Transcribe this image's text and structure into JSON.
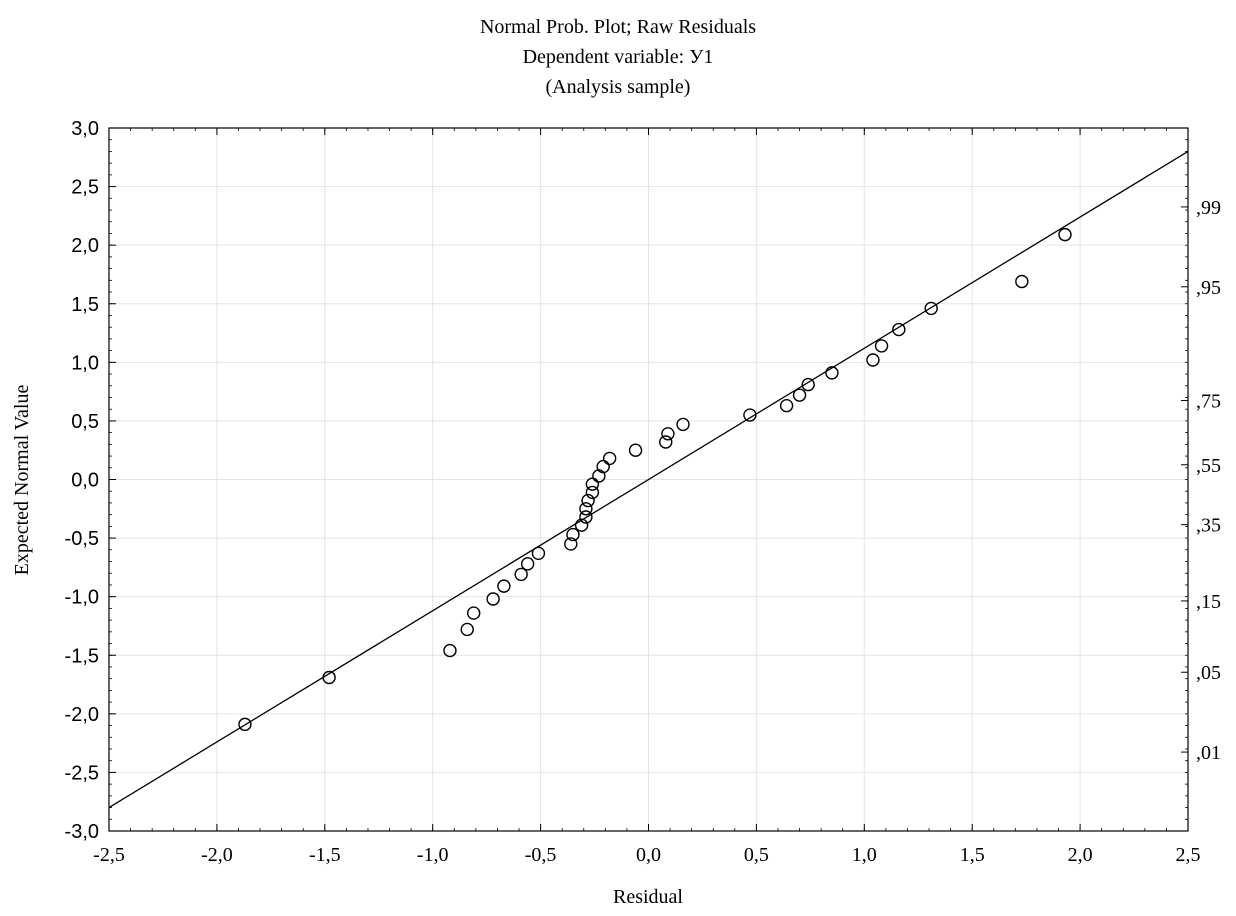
{
  "chart_data": {
    "type": "scatter",
    "title": [
      "Normal Prob. Plot; Raw Residuals",
      "Dependent variable: У1",
      "(Analysis sample)"
    ],
    "xlabel": "Residual",
    "ylabel": "Expected Normal Value",
    "xlim": [
      -2.5,
      2.5
    ],
    "ylim": [
      -3.0,
      3.0
    ],
    "x_ticks": [
      -2.5,
      -2.0,
      -1.5,
      -1.0,
      -0.5,
      0.0,
      0.5,
      1.0,
      1.5,
      2.0,
      2.5
    ],
    "x_tick_labels": [
      "-2,5",
      "-2,0",
      "-1,5",
      "-1,0",
      "-0,5",
      "0,0",
      "0,5",
      "1,0",
      "1,5",
      "2,0",
      "2,5"
    ],
    "y_ticks": [
      -3.0,
      -2.5,
      -2.0,
      -1.5,
      -1.0,
      -0.5,
      0.0,
      0.5,
      1.0,
      1.5,
      2.0,
      2.5,
      3.0
    ],
    "y_tick_labels": [
      "-3,0",
      "-2,5",
      "-2,0",
      "-1,5",
      "-1,0",
      "-0,5",
      "0,0",
      "0,5",
      "1,0",
      "1,5",
      "2,0",
      "2,5",
      "3,0"
    ],
    "right_axis": {
      "labels": [
        ",01",
        ",05",
        ",15",
        ",35",
        ",55",
        ",75",
        ",95",
        ",99"
      ],
      "probabilities": [
        0.01,
        0.05,
        0.15,
        0.35,
        0.55,
        0.75,
        0.95,
        0.99
      ]
    },
    "grid": true,
    "fit_line": {
      "x": [
        -2.5,
        2.5
      ],
      "y": [
        -2.8,
        2.8
      ]
    },
    "series": [
      {
        "marker": "open-circle",
        "points": [
          [
            -1.87,
            -2.09
          ],
          [
            -1.48,
            -1.69
          ],
          [
            -0.92,
            -1.46
          ],
          [
            -0.84,
            -1.28
          ],
          [
            -0.81,
            -1.14
          ],
          [
            -0.72,
            -1.02
          ],
          [
            -0.67,
            -0.91
          ],
          [
            -0.59,
            -0.81
          ],
          [
            -0.56,
            -0.72
          ],
          [
            -0.51,
            -0.63
          ],
          [
            -0.36,
            -0.55
          ],
          [
            -0.35,
            -0.47
          ],
          [
            -0.31,
            -0.39
          ],
          [
            -0.29,
            -0.32
          ],
          [
            -0.29,
            -0.25
          ],
          [
            -0.28,
            -0.18
          ],
          [
            -0.26,
            -0.11
          ],
          [
            -0.26,
            -0.04
          ],
          [
            -0.23,
            0.03
          ],
          [
            -0.21,
            0.11
          ],
          [
            -0.18,
            0.18
          ],
          [
            -0.06,
            0.25
          ],
          [
            0.08,
            0.32
          ],
          [
            0.09,
            0.39
          ],
          [
            0.16,
            0.47
          ],
          [
            0.47,
            0.55
          ],
          [
            0.64,
            0.63
          ],
          [
            0.7,
            0.72
          ],
          [
            0.74,
            0.81
          ],
          [
            0.85,
            0.91
          ],
          [
            1.04,
            1.02
          ],
          [
            1.08,
            1.14
          ],
          [
            1.16,
            1.28
          ],
          [
            1.31,
            1.46
          ],
          [
            1.73,
            1.69
          ],
          [
            1.93,
            2.09
          ]
        ]
      }
    ]
  }
}
